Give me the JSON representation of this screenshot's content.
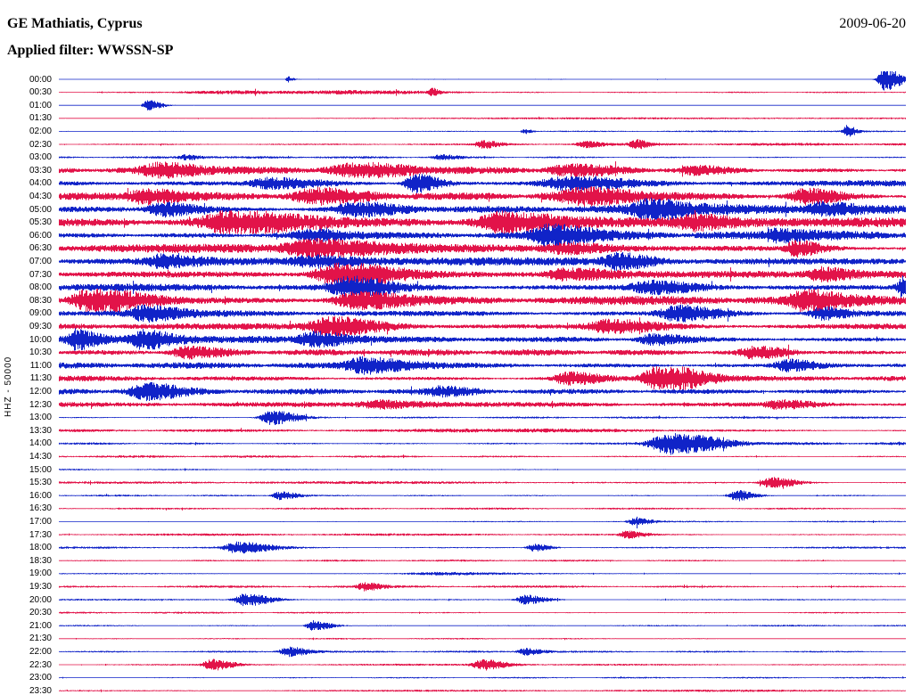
{
  "chart_data": {
    "type": "line",
    "subtype": "helicorder-seismogram",
    "station": "GE Mathiatis, Cyprus",
    "date": "2009-06-20",
    "filter": "Applied filter: WWSSN-SP",
    "channel_scale": "HHZ - 50000",
    "row_interval_minutes": 30,
    "legend_position": "none",
    "grid": false,
    "colors": {
      "blue": "#1023c8",
      "red": "#e21349"
    },
    "rows": [
      {
        "t": "00:00",
        "c": "b",
        "a": 0.04,
        "b": [
          [
            0.975,
            0.01,
            1.0
          ],
          [
            0.27,
            0.003,
            0.25
          ]
        ]
      },
      {
        "t": "00:30",
        "c": "r",
        "a": 0.1,
        "b": [
          [
            0.2,
            0.08,
            0.12
          ],
          [
            0.35,
            0.05,
            0.1
          ],
          [
            0.44,
            0.004,
            0.3
          ]
        ]
      },
      {
        "t": "01:00",
        "c": "b",
        "a": 0.05,
        "b": [
          [
            0.105,
            0.008,
            0.45
          ]
        ]
      },
      {
        "t": "01:30",
        "c": "r",
        "a": 0.07,
        "b": [
          [
            0.5,
            0.2,
            0.05
          ]
        ]
      },
      {
        "t": "02:00",
        "c": "b",
        "a": 0.08,
        "b": [
          [
            0.93,
            0.005,
            0.5
          ],
          [
            0.55,
            0.004,
            0.2
          ]
        ]
      },
      {
        "t": "02:30",
        "c": "r",
        "a": 0.13,
        "b": [
          [
            0.5,
            0.01,
            0.3
          ],
          [
            0.68,
            0.008,
            0.35
          ],
          [
            0.62,
            0.01,
            0.25
          ]
        ]
      },
      {
        "t": "03:00",
        "c": "b",
        "a": 0.11,
        "b": [
          [
            0.15,
            0.01,
            0.2
          ],
          [
            0.45,
            0.01,
            0.2
          ]
        ]
      },
      {
        "t": "03:30",
        "c": "r",
        "a": 0.3,
        "b": [
          [
            0.12,
            0.03,
            0.5
          ],
          [
            0.35,
            0.04,
            0.45
          ],
          [
            0.6,
            0.03,
            0.4
          ],
          [
            0.75,
            0.02,
            0.3
          ]
        ]
      },
      {
        "t": "04:00",
        "c": "b",
        "a": 0.3,
        "b": [
          [
            0.42,
            0.015,
            0.8
          ],
          [
            0.25,
            0.03,
            0.4
          ],
          [
            0.6,
            0.04,
            0.5
          ]
        ]
      },
      {
        "t": "04:30",
        "c": "r",
        "a": 0.35,
        "b": [
          [
            0.1,
            0.02,
            0.6
          ],
          [
            0.3,
            0.03,
            0.5
          ],
          [
            0.62,
            0.04,
            0.6
          ],
          [
            0.88,
            0.02,
            0.6
          ]
        ]
      },
      {
        "t": "05:00",
        "c": "b",
        "a": 0.4,
        "b": [
          [
            0.12,
            0.02,
            0.6
          ],
          [
            0.35,
            0.03,
            0.5
          ],
          [
            0.7,
            0.03,
            0.7
          ],
          [
            0.9,
            0.02,
            0.5
          ]
        ]
      },
      {
        "t": "05:30",
        "c": "r",
        "a": 0.45,
        "b": [
          [
            0.2,
            0.04,
            0.8
          ],
          [
            0.52,
            0.03,
            0.7
          ],
          [
            0.75,
            0.03,
            0.5
          ]
        ]
      },
      {
        "t": "06:00",
        "c": "b",
        "a": 0.4,
        "b": [
          [
            0.58,
            0.025,
            1.0
          ],
          [
            0.3,
            0.03,
            0.4
          ],
          [
            0.85,
            0.02,
            0.5
          ]
        ]
      },
      {
        "t": "06:30",
        "c": "r",
        "a": 0.4,
        "b": [
          [
            0.3,
            0.04,
            0.7
          ],
          [
            0.6,
            0.03,
            0.4
          ],
          [
            0.87,
            0.015,
            0.6
          ]
        ]
      },
      {
        "t": "07:00",
        "c": "b",
        "a": 0.38,
        "b": [
          [
            0.66,
            0.02,
            0.6
          ],
          [
            0.3,
            0.03,
            0.4
          ],
          [
            0.12,
            0.02,
            0.4
          ]
        ]
      },
      {
        "t": "07:30",
        "c": "r",
        "a": 0.45,
        "b": [
          [
            0.33,
            0.035,
            1.0
          ],
          [
            0.6,
            0.03,
            0.5
          ],
          [
            0.9,
            0.02,
            0.5
          ]
        ]
      },
      {
        "t": "08:00",
        "c": "b",
        "a": 0.4,
        "b": [
          [
            0.34,
            0.025,
            0.8
          ],
          [
            1.0,
            0.012,
            1.2
          ],
          [
            0.7,
            0.03,
            0.5
          ]
        ]
      },
      {
        "t": "08:30",
        "c": "r",
        "a": 0.45,
        "b": [
          [
            0.04,
            0.03,
            1.1
          ],
          [
            0.35,
            0.03,
            0.6
          ],
          [
            0.88,
            0.02,
            0.7
          ]
        ]
      },
      {
        "t": "09:00",
        "c": "b",
        "a": 0.38,
        "b": [
          [
            0.1,
            0.02,
            0.5
          ],
          [
            0.73,
            0.025,
            0.6
          ],
          [
            0.9,
            0.015,
            0.5
          ]
        ]
      },
      {
        "t": "09:30",
        "c": "r",
        "a": 0.4,
        "b": [
          [
            0.32,
            0.03,
            0.7
          ],
          [
            0.65,
            0.03,
            0.5
          ]
        ]
      },
      {
        "t": "10:00",
        "c": "b",
        "a": 0.32,
        "b": [
          [
            0.02,
            0.012,
            0.7
          ],
          [
            0.1,
            0.02,
            0.7
          ],
          [
            0.3,
            0.02,
            0.6
          ],
          [
            0.7,
            0.02,
            0.4
          ]
        ]
      },
      {
        "t": "10:30",
        "c": "r",
        "a": 0.28,
        "b": [
          [
            0.15,
            0.02,
            0.4
          ],
          [
            0.82,
            0.02,
            0.45
          ]
        ]
      },
      {
        "t": "11:00",
        "c": "b",
        "a": 0.28,
        "b": [
          [
            0.36,
            0.03,
            0.6
          ],
          [
            0.86,
            0.02,
            0.5
          ]
        ]
      },
      {
        "t": "11:30",
        "c": "r",
        "a": 0.28,
        "b": [
          [
            0.71,
            0.025,
            1.2
          ],
          [
            0.6,
            0.02,
            0.5
          ]
        ]
      },
      {
        "t": "12:00",
        "c": "b",
        "a": 0.28,
        "b": [
          [
            0.1,
            0.02,
            0.6
          ],
          [
            0.45,
            0.02,
            0.3
          ]
        ]
      },
      {
        "t": "12:30",
        "c": "r",
        "a": 0.22,
        "b": [
          [
            0.38,
            0.03,
            0.3
          ],
          [
            0.85,
            0.02,
            0.3
          ]
        ]
      },
      {
        "t": "13:00",
        "c": "b",
        "a": 0.1,
        "b": [
          [
            0.25,
            0.015,
            0.6
          ]
        ]
      },
      {
        "t": "13:30",
        "c": "r",
        "a": 0.13,
        "b": [
          [
            0.5,
            0.1,
            0.1
          ]
        ]
      },
      {
        "t": "14:00",
        "c": "b",
        "a": 0.13,
        "b": [
          [
            0.72,
            0.03,
            0.9
          ]
        ]
      },
      {
        "t": "14:30",
        "c": "r",
        "a": 0.11,
        "b": []
      },
      {
        "t": "15:00",
        "c": "b",
        "a": 0.07,
        "b": []
      },
      {
        "t": "15:30",
        "c": "r",
        "a": 0.13,
        "b": [
          [
            0.84,
            0.015,
            0.45
          ]
        ]
      },
      {
        "t": "16:00",
        "c": "b",
        "a": 0.11,
        "b": [
          [
            0.26,
            0.01,
            0.35
          ],
          [
            0.8,
            0.01,
            0.45
          ]
        ]
      },
      {
        "t": "16:30",
        "c": "r",
        "a": 0.09,
        "b": []
      },
      {
        "t": "17:00",
        "c": "b",
        "a": 0.07,
        "b": [
          [
            0.68,
            0.01,
            0.3
          ]
        ]
      },
      {
        "t": "17:30",
        "c": "r",
        "a": 0.11,
        "b": [
          [
            0.67,
            0.01,
            0.3
          ]
        ]
      },
      {
        "t": "18:00",
        "c": "b",
        "a": 0.11,
        "b": [
          [
            0.21,
            0.02,
            0.45
          ],
          [
            0.56,
            0.01,
            0.3
          ]
        ]
      },
      {
        "t": "18:30",
        "c": "r",
        "a": 0.09,
        "b": []
      },
      {
        "t": "19:00",
        "c": "b",
        "a": 0.08,
        "b": [
          [
            0.45,
            0.05,
            0.12
          ]
        ]
      },
      {
        "t": "19:30",
        "c": "r",
        "a": 0.11,
        "b": [
          [
            0.36,
            0.01,
            0.3
          ]
        ]
      },
      {
        "t": "20:00",
        "c": "b",
        "a": 0.11,
        "b": [
          [
            0.22,
            0.015,
            0.55
          ],
          [
            0.55,
            0.012,
            0.4
          ]
        ]
      },
      {
        "t": "20:30",
        "c": "r",
        "a": 0.09,
        "b": []
      },
      {
        "t": "21:00",
        "c": "b",
        "a": 0.09,
        "b": [
          [
            0.3,
            0.01,
            0.45
          ]
        ]
      },
      {
        "t": "21:30",
        "c": "r",
        "a": 0.07,
        "b": []
      },
      {
        "t": "22:00",
        "c": "b",
        "a": 0.09,
        "b": [
          [
            0.27,
            0.012,
            0.4
          ],
          [
            0.55,
            0.01,
            0.3
          ]
        ]
      },
      {
        "t": "22:30",
        "c": "r",
        "a": 0.09,
        "b": [
          [
            0.18,
            0.012,
            0.45
          ],
          [
            0.5,
            0.015,
            0.4
          ]
        ]
      },
      {
        "t": "23:00",
        "c": "b",
        "a": 0.07,
        "b": []
      },
      {
        "t": "23:30",
        "c": "r",
        "a": 0.1,
        "b": []
      }
    ]
  }
}
